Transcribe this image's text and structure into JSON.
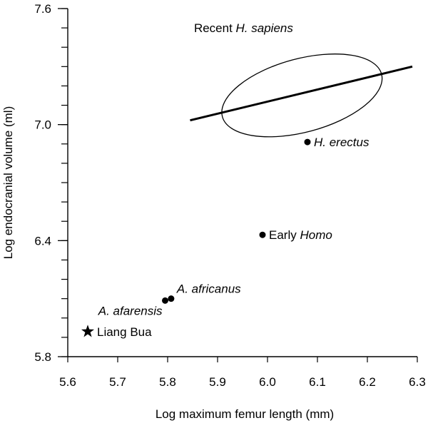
{
  "chart_data": {
    "type": "scatter",
    "xlabel": "Log maximum femur length (mm)",
    "ylabel": "Log endocranial volume (ml)",
    "xlim": [
      5.6,
      6.3
    ],
    "ylim": [
      5.8,
      7.6
    ],
    "x_ticks": [
      "5.6",
      "5.7",
      "5.8",
      "5.9",
      "6.0",
      "6.1",
      "6.2",
      "6.3"
    ],
    "y_ticks": [
      "5.8",
      "6.4",
      "7.0",
      "7.6"
    ],
    "y_minor_step": 0.1,
    "colors": {
      "ink": "#000000",
      "background": "#ffffff"
    },
    "points": [
      {
        "id": "liang-bua",
        "marker": "star",
        "x": 5.64,
        "y": 5.93,
        "label_parts": [
          {
            "text": "Liang Bua",
            "italic": false
          }
        ],
        "label_side": "right"
      },
      {
        "id": "a-afarensis",
        "marker": "circle",
        "x": 5.795,
        "y": 6.09,
        "label_parts": [
          {
            "text": "A. afarensis",
            "italic": true
          }
        ],
        "label_side": "below-left"
      },
      {
        "id": "a-africanus",
        "marker": "circle",
        "x": 5.807,
        "y": 6.1,
        "label_parts": [
          {
            "text": "A. africanus",
            "italic": true
          }
        ],
        "label_side": "above-right"
      },
      {
        "id": "early-homo",
        "marker": "circle",
        "x": 5.99,
        "y": 6.43,
        "label_parts": [
          {
            "text": "Early ",
            "italic": false
          },
          {
            "text": "Homo",
            "italic": true
          }
        ],
        "label_side": "right"
      },
      {
        "id": "h-erectus",
        "marker": "circle",
        "x": 6.08,
        "y": 6.91,
        "label_parts": [
          {
            "text": "H. erectus",
            "italic": true
          }
        ],
        "label_side": "right"
      }
    ],
    "regression_line": {
      "x": [
        5.845,
        6.29
      ],
      "y": [
        7.022,
        7.3
      ]
    },
    "ellipse": {
      "center": [
        6.069,
        7.151
      ],
      "semi_x": 0.165,
      "semi_y": 0.19,
      "rotation_deg": -15,
      "label_parts": [
        {
          "text": "Recent ",
          "italic": false
        },
        {
          "text": "H. sapiens",
          "italic": true
        }
      ],
      "label_anchor": [
        5.952,
        7.5
      ]
    }
  }
}
